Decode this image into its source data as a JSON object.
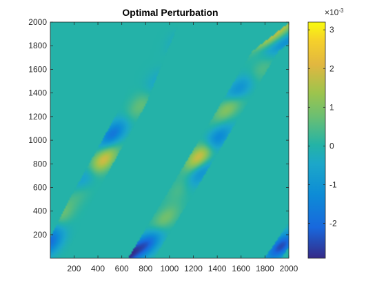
{
  "chart_data": {
    "type": "heatmap",
    "title": "Optimal Perturbation",
    "xlabel": "",
    "ylabel": "",
    "xlim": [
      1,
      2000
    ],
    "ylim": [
      1,
      2000
    ],
    "xticks": [
      200,
      400,
      600,
      800,
      1000,
      1200,
      1400,
      1600,
      1800,
      2000
    ],
    "yticks": [
      200,
      400,
      600,
      800,
      1000,
      1200,
      1400,
      1600,
      1800,
      2000
    ],
    "colorbar": {
      "multiplier": "×10",
      "exponent": "-3",
      "range": [
        -2.9,
        3.2
      ],
      "ticks": [
        -2,
        -1,
        0,
        1,
        2,
        3
      ],
      "colormap": "parula"
    },
    "colors": {
      "background_value": "#24b3a6",
      "axes_color": "#262626"
    },
    "bands": [
      {
        "name": "band-left",
        "centerline": [
          [
            0,
            -30
          ],
          [
            250,
            480
          ],
          [
            700,
            1300
          ],
          [
            1000,
            2050
          ]
        ],
        "half_width": 100,
        "blobs": [
          [
            225,
            2050,
            0.9
          ],
          [
            180,
            1830,
            -0.6
          ],
          [
            210,
            1690,
            0.4
          ],
          [
            120,
            1490,
            -0.5
          ],
          [
            60,
            1290,
            0.7
          ],
          [
            -40,
            1050,
            -1.8
          ],
          [
            0,
            830,
            2.1
          ],
          [
            -60,
            690,
            -0.9
          ],
          [
            -50,
            550,
            0.4
          ],
          [
            -110,
            350,
            1.0
          ],
          [
            -150,
            250,
            -1.0
          ],
          [
            -80,
            130,
            -1.7
          ]
        ]
      },
      {
        "name": "band-right",
        "centerline": [
          [
            750,
            -20
          ],
          [
            1300,
            900
          ],
          [
            1800,
            1750
          ],
          [
            2120,
            2000
          ]
        ],
        "half_width": 110,
        "blobs": [
          [
            -180,
            2050,
            2.2
          ],
          [
            -120,
            1880,
            1.6
          ],
          [
            80,
            1830,
            -1.1
          ],
          [
            60,
            1600,
            0.5
          ],
          [
            -30,
            1420,
            -1.3
          ],
          [
            -30,
            1280,
            1.3
          ],
          [
            30,
            1000,
            -1.7
          ],
          [
            -20,
            870,
            2.3
          ],
          [
            60,
            720,
            -1.2
          ],
          [
            -20,
            600,
            0.5
          ],
          [
            0,
            330,
            0.9
          ],
          [
            -20,
            120,
            -2.0
          ],
          [
            -130,
            20,
            -2.6
          ]
        ]
      },
      {
        "name": "band-corner",
        "centerline": [
          [
            1800,
            -100
          ],
          [
            2200,
            500
          ]
        ],
        "half_width": 70,
        "blobs": [
          [
            0,
            100,
            -2.5
          ]
        ]
      }
    ]
  }
}
